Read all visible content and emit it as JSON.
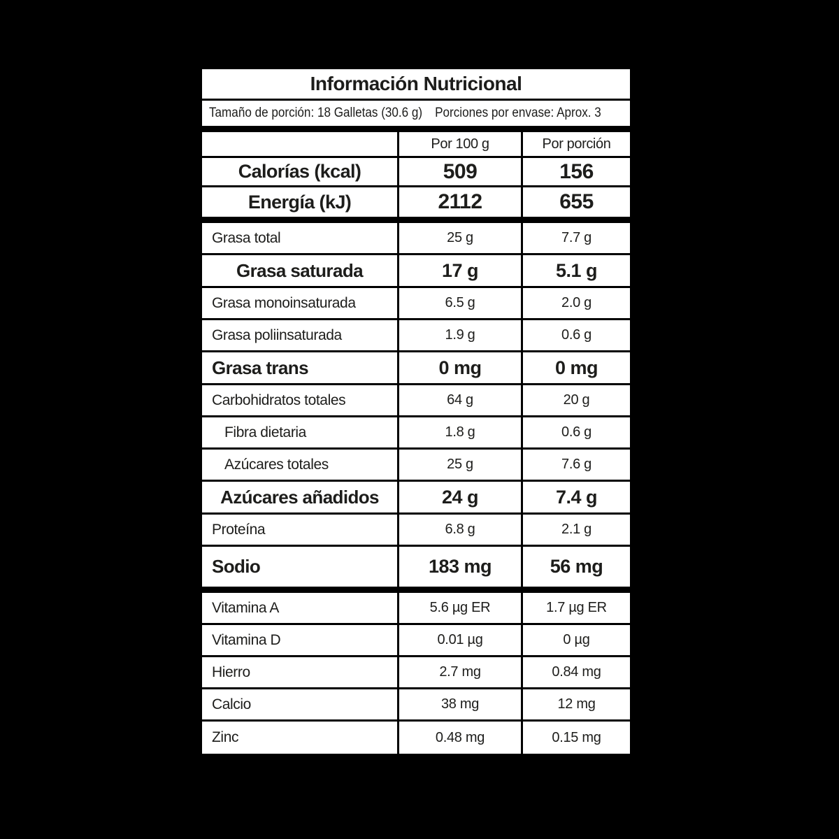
{
  "colors": {
    "background": "#000000",
    "panel": "#ffffff",
    "text": "#1d1d1b",
    "border": "#000000"
  },
  "title": "Información Nutricional",
  "serving": {
    "size": "Tamaño de porción: 18 Galletas (30.6 g)",
    "per_pack": "Porciones por envase: Aprox. 3"
  },
  "columns": {
    "nutrient": "",
    "per100": "Por 100 g",
    "portion": "Por porción"
  },
  "rows": [
    {
      "label": "Calorías (kcal)",
      "per100": "509",
      "portion": "156"
    },
    {
      "label": "Energía (kJ)",
      "per100": "2112",
      "portion": "655"
    },
    {
      "label": "Grasa total",
      "per100": "25 g",
      "portion": "7.7 g"
    },
    {
      "label": "Grasa saturada",
      "per100": "17 g",
      "portion": "5.1 g"
    },
    {
      "label": "Grasa monoinsaturada",
      "per100": "6.5 g",
      "portion": "2.0 g"
    },
    {
      "label": "Grasa poliinsaturada",
      "per100": "1.9 g",
      "portion": "0.6 g"
    },
    {
      "label": "Grasa trans",
      "per100": "0 mg",
      "portion": "0 mg"
    },
    {
      "label": "Carbohidratos totales",
      "per100": "64 g",
      "portion": "20 g"
    },
    {
      "label": "Fibra dietaria",
      "per100": "1.8 g",
      "portion": "0.6 g"
    },
    {
      "label": "Azúcares totales",
      "per100": "25 g",
      "portion": "7.6 g"
    },
    {
      "label": "Azúcares añadidos",
      "per100": "24 g",
      "portion": "7.4 g"
    },
    {
      "label": "Proteína",
      "per100": "6.8 g",
      "portion": "2.1 g"
    },
    {
      "label": "Sodio",
      "per100": "183 mg",
      "portion": "56 mg"
    },
    {
      "label": "Vitamina A",
      "per100": "5.6 µg ER",
      "portion": "1.7 µg ER"
    },
    {
      "label": "Vitamina D",
      "per100": "0.01 µg",
      "portion": "0 µg"
    },
    {
      "label": "Hierro",
      "per100": "2.7 mg",
      "portion": "0.84 mg"
    },
    {
      "label": "Calcio",
      "per100": "38 mg",
      "portion": "12 mg"
    },
    {
      "label": "Zinc",
      "per100": "0.48 mg",
      "portion": "0.15 mg"
    }
  ]
}
